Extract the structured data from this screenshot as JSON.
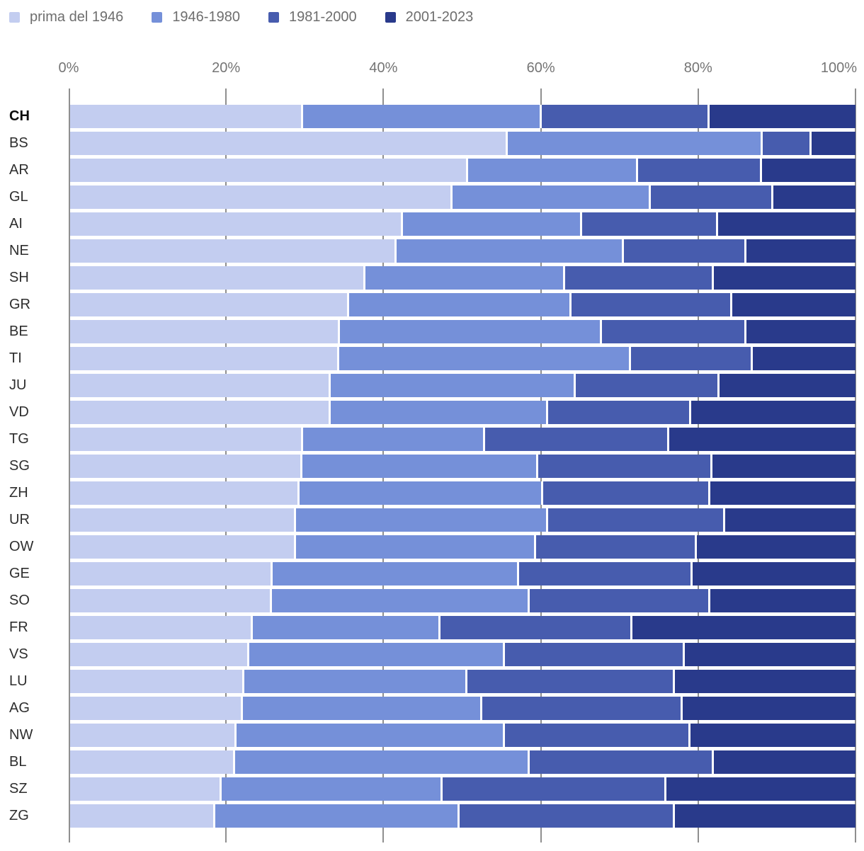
{
  "legend": {
    "items": [
      {
        "label": "prima del 1946",
        "color": "#c3cdf0"
      },
      {
        "label": "1946-1980",
        "color": "#7590d9"
      },
      {
        "label": "1981-2000",
        "color": "#475cae"
      },
      {
        "label": "2001-2023",
        "color": "#293a8b"
      }
    ]
  },
  "chart_data": {
    "type": "bar",
    "stacked": true,
    "orientation": "horizontal",
    "title": "",
    "xlabel": "",
    "ylabel": "",
    "xlim": [
      0,
      100
    ],
    "x_tick_labels": [
      "0%",
      "20%",
      "40%",
      "60%",
      "80%",
      "100%"
    ],
    "grid": true,
    "legend_position": "top",
    "highlight_category": "CH",
    "categories": [
      "CH",
      "BS",
      "AR",
      "GL",
      "AI",
      "NE",
      "SH",
      "GR",
      "BE",
      "TI",
      "JU",
      "VD",
      "TG",
      "SG",
      "ZH",
      "UR",
      "OW",
      "GE",
      "SO",
      "FR",
      "VS",
      "LU",
      "AG",
      "NW",
      "BL",
      "SZ",
      "ZG"
    ],
    "series": [
      {
        "name": "prima del 1946",
        "color": "#c3cdf0",
        "values": [
          29.7,
          55.7,
          50.7,
          48.7,
          42.4,
          41.6,
          37.6,
          35.5,
          34.4,
          34.3,
          33.2,
          33.2,
          29.7,
          29.6,
          29.2,
          28.8,
          28.8,
          25.8,
          25.7,
          23.3,
          22.8,
          22.2,
          22.0,
          21.2,
          21.0,
          19.3,
          18.5
        ]
      },
      {
        "name": "1946-1980",
        "color": "#7590d9",
        "values": [
          30.4,
          32.5,
          21.6,
          25.2,
          22.8,
          28.9,
          25.4,
          28.3,
          33.3,
          37.1,
          31.2,
          27.7,
          23.1,
          30.0,
          31.0,
          32.1,
          30.5,
          31.4,
          32.8,
          23.9,
          32.6,
          28.4,
          30.5,
          34.2,
          37.5,
          28.1,
          31.1
        ]
      },
      {
        "name": "1981-2000",
        "color": "#475cae",
        "values": [
          21.3,
          6.2,
          15.8,
          15.6,
          17.3,
          15.6,
          19.0,
          20.5,
          18.4,
          15.5,
          18.3,
          18.2,
          23.5,
          22.2,
          21.3,
          22.5,
          20.5,
          22.1,
          23.0,
          24.4,
          22.9,
          26.4,
          25.5,
          23.6,
          23.5,
          28.5,
          27.4
        ]
      },
      {
        "name": "2001-2023",
        "color": "#293a8b",
        "values": [
          18.6,
          5.6,
          11.9,
          10.5,
          17.5,
          13.9,
          18.0,
          15.7,
          13.9,
          13.1,
          17.3,
          20.9,
          23.7,
          18.2,
          18.5,
          16.6,
          20.2,
          20.7,
          18.5,
          28.4,
          21.7,
          23.0,
          22.0,
          21.0,
          18.0,
          24.1,
          23.0
        ]
      }
    ],
    "colors": {
      "gridline": "#8f8f8f",
      "axis_text": "#757575",
      "label_text": "#2e2e2e"
    }
  }
}
